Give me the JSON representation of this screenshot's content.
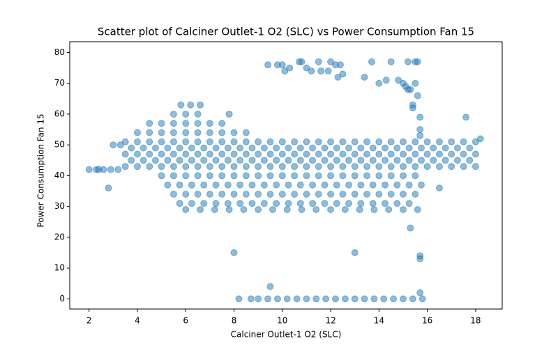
{
  "chart_data": {
    "type": "scatter",
    "title": "Scatter plot of Calciner Outlet-1 O2 (SLC) vs Power Consumption Fan 15",
    "x_label": "Calciner Outlet-1 O2 (SLC)",
    "y_label": "Power Consumption Fan 15",
    "color": "#1f77b4",
    "xlim": [
      1.2,
      19.1
    ],
    "ylim": [
      -3.3,
      83.5
    ],
    "xticks": [
      2,
      4,
      6,
      8,
      10,
      12,
      14,
      16,
      18
    ],
    "yticks": [
      0,
      10,
      20,
      30,
      40,
      50,
      60,
      70,
      80
    ],
    "x": [
      3.5,
      4,
      4.5,
      5,
      5.5,
      6,
      6.5,
      7,
      7.5,
      8,
      8.5,
      9,
      9.5,
      10,
      10.5,
      11,
      11.5,
      12,
      12.5,
      13,
      13.5,
      14,
      14.5,
      15,
      15.5,
      16,
      16.5,
      17,
      17.5,
      18,
      3.75,
      4.25,
      4.75,
      5.25,
      5.75,
      6.25,
      6.75,
      7.25,
      7.75,
      8.25,
      8.75,
      9.25,
      9.75,
      10.25,
      10.75,
      11.25,
      11.75,
      12.25,
      12.75,
      13.25,
      13.75,
      14.25,
      14.75,
      15.25,
      15.75,
      16.25,
      16.75,
      17.25,
      17.75,
      3.5,
      4,
      4.5,
      5,
      5.5,
      6,
      6.5,
      7,
      7.5,
      8,
      8.5,
      9,
      9.5,
      10,
      10.5,
      11,
      11.5,
      12,
      12.5,
      13,
      13.5,
      14,
      14.5,
      15,
      15.5,
      16,
      16.5,
      17,
      17.5,
      18,
      3.75,
      4.25,
      4.75,
      5.25,
      5.75,
      6.25,
      6.75,
      7.25,
      7.75,
      8.25,
      8.75,
      9.25,
      9.75,
      10.25,
      10.75,
      11.25,
      11.75,
      12.25,
      12.75,
      13.25,
      13.75,
      14.25,
      14.75,
      15.25,
      15.75,
      16.25,
      16.75,
      17.25,
      17.75,
      3.5,
      4,
      4.5,
      5,
      5.5,
      6,
      6.5,
      7,
      7.5,
      8,
      8.5,
      9,
      9.5,
      10,
      10.5,
      11,
      11.5,
      12,
      12.5,
      13,
      13.5,
      14,
      14.5,
      15,
      15.5,
      16,
      16.5,
      17,
      17.5,
      18,
      5,
      5.5,
      6,
      6.5,
      7,
      7.5,
      8,
      8.5,
      9,
      9.5,
      10,
      10.5,
      11,
      11.5,
      12,
      12.5,
      13,
      13.5,
      14,
      14.5,
      15,
      15.5,
      5.25,
      5.75,
      6.25,
      6.75,
      7.25,
      7.75,
      8.25,
      8.75,
      9.25,
      9.75,
      10.25,
      10.75,
      11.25,
      11.75,
      12.25,
      12.75,
      13.25,
      13.75,
      14.25,
      14.75,
      15.25,
      15.75,
      5.5,
      6,
      6.5,
      7,
      7.5,
      8,
      8.5,
      9,
      9.5,
      10,
      10.5,
      11,
      11.5,
      12,
      12.5,
      13,
      13.5,
      14,
      14.5,
      15,
      15.5,
      5.75,
      6.25,
      6.75,
      7.25,
      7.75,
      8.25,
      8.75,
      9.25,
      9.75,
      10.25,
      10.75,
      11.25,
      11.75,
      12.25,
      12.75,
      13.25,
      13.75,
      14.25,
      14.75,
      15.25,
      6,
      6.6,
      7.2,
      7.8,
      8.4,
      9,
      9.6,
      10.2,
      10.8,
      11.4,
      12,
      12.6,
      13.2,
      13.8,
      14.4,
      15,
      15.6,
      4,
      4.5,
      5,
      5.5,
      6,
      6.5,
      7,
      7.5,
      8,
      8.5,
      4.5,
      5,
      5.5,
      6,
      6.5,
      7,
      7.5,
      5.5,
      6,
      6.5,
      7.8,
      5.8,
      6.2,
      6.6,
      9.4,
      9.8,
      10.2,
      10.6,
      11,
      11.4,
      11.8,
      12.2,
      12.6,
      13,
      13.4,
      13.8,
      14.2,
      14.6,
      15,
      15.4,
      15.8,
      8.2,
      8.7,
      9,
      2,
      2.3,
      2.4,
      2.6,
      2.8,
      2.9,
      3,
      3.2,
      3.3,
      8,
      13,
      9.5,
      15.3,
      15.7,
      15.7,
      15.7,
      9.4,
      9.8,
      10,
      10.1,
      10.3,
      10.7,
      10.8,
      11,
      11.2,
      11.6,
      11.5,
      11.9,
      12,
      12.2,
      12.4,
      12.3,
      12.5,
      13.4,
      13.7,
      14,
      14.5,
      14.3,
      14.8,
      15,
      15.1,
      15.2,
      15.3,
      15.5,
      15.6,
      15.5,
      15.2,
      15.4,
      15.4,
      15.6,
      15.7,
      15.7,
      15.7,
      16.5,
      17.6,
      18.2
    ],
    "y": [
      51,
      51,
      51,
      51,
      51,
      51,
      51,
      51,
      51,
      51,
      51,
      51,
      51,
      51,
      51,
      51,
      51,
      51,
      51,
      51,
      51,
      51,
      51,
      51,
      51,
      51,
      51,
      51,
      51,
      51,
      49,
      49,
      49,
      49,
      49,
      49,
      49,
      49,
      49,
      49,
      49,
      49,
      49,
      49,
      49,
      49,
      49,
      49,
      49,
      49,
      49,
      49,
      49,
      49,
      49,
      49,
      49,
      49,
      49,
      47,
      47,
      47,
      47,
      47,
      47,
      47,
      47,
      47,
      47,
      47,
      47,
      47,
      47,
      47,
      47,
      47,
      47,
      47,
      47,
      47,
      47,
      47,
      47,
      47,
      47,
      47,
      47,
      47,
      47,
      45,
      45,
      45,
      45,
      45,
      45,
      45,
      45,
      45,
      45,
      45,
      45,
      45,
      45,
      45,
      45,
      45,
      45,
      45,
      45,
      45,
      45,
      45,
      45,
      45,
      45,
      45,
      45,
      45,
      43,
      43,
      43,
      43,
      43,
      43,
      43,
      43,
      43,
      43,
      43,
      43,
      43,
      43,
      43,
      43,
      43,
      43,
      43,
      43,
      43,
      43,
      43,
      43,
      43,
      43,
      43,
      43,
      43,
      43,
      40,
      40,
      40,
      40,
      40,
      40,
      40,
      40,
      40,
      40,
      40,
      40,
      40,
      40,
      40,
      40,
      40,
      40,
      40,
      40,
      40,
      40,
      37,
      37,
      37,
      37,
      37,
      37,
      37,
      37,
      37,
      37,
      37,
      37,
      37,
      37,
      37,
      37,
      37,
      37,
      37,
      37,
      37,
      37,
      34,
      34,
      34,
      34,
      34,
      34,
      34,
      34,
      34,
      34,
      34,
      34,
      34,
      34,
      34,
      34,
      34,
      34,
      34,
      34,
      34,
      31,
      31,
      31,
      31,
      31,
      31,
      31,
      31,
      31,
      31,
      31,
      31,
      31,
      31,
      31,
      31,
      31,
      31,
      31,
      31,
      29,
      29,
      29,
      29,
      29,
      29,
      29,
      29,
      29,
      29,
      29,
      29,
      29,
      29,
      29,
      29,
      29,
      54,
      54,
      54,
      54,
      54,
      54,
      54,
      54,
      54,
      54,
      57,
      57,
      57,
      57,
      57,
      57,
      57,
      60,
      60,
      60,
      60,
      63,
      63,
      63,
      0,
      0,
      0,
      0,
      0,
      0,
      0,
      0,
      0,
      0,
      0,
      0,
      0,
      0,
      0,
      0,
      0,
      0,
      0,
      0,
      42,
      42,
      42,
      42,
      36,
      42,
      50,
      42,
      50,
      15,
      15,
      4,
      23,
      14,
      13,
      2,
      76,
      76,
      76,
      74,
      75,
      77,
      77,
      75,
      74,
      74,
      77,
      74,
      77,
      76,
      76,
      72,
      73,
      72,
      77,
      70,
      77,
      71,
      71,
      70,
      69,
      68,
      68,
      70,
      77,
      77,
      77,
      63,
      62,
      66,
      59,
      55,
      53,
      36,
      59,
      52
    ]
  }
}
